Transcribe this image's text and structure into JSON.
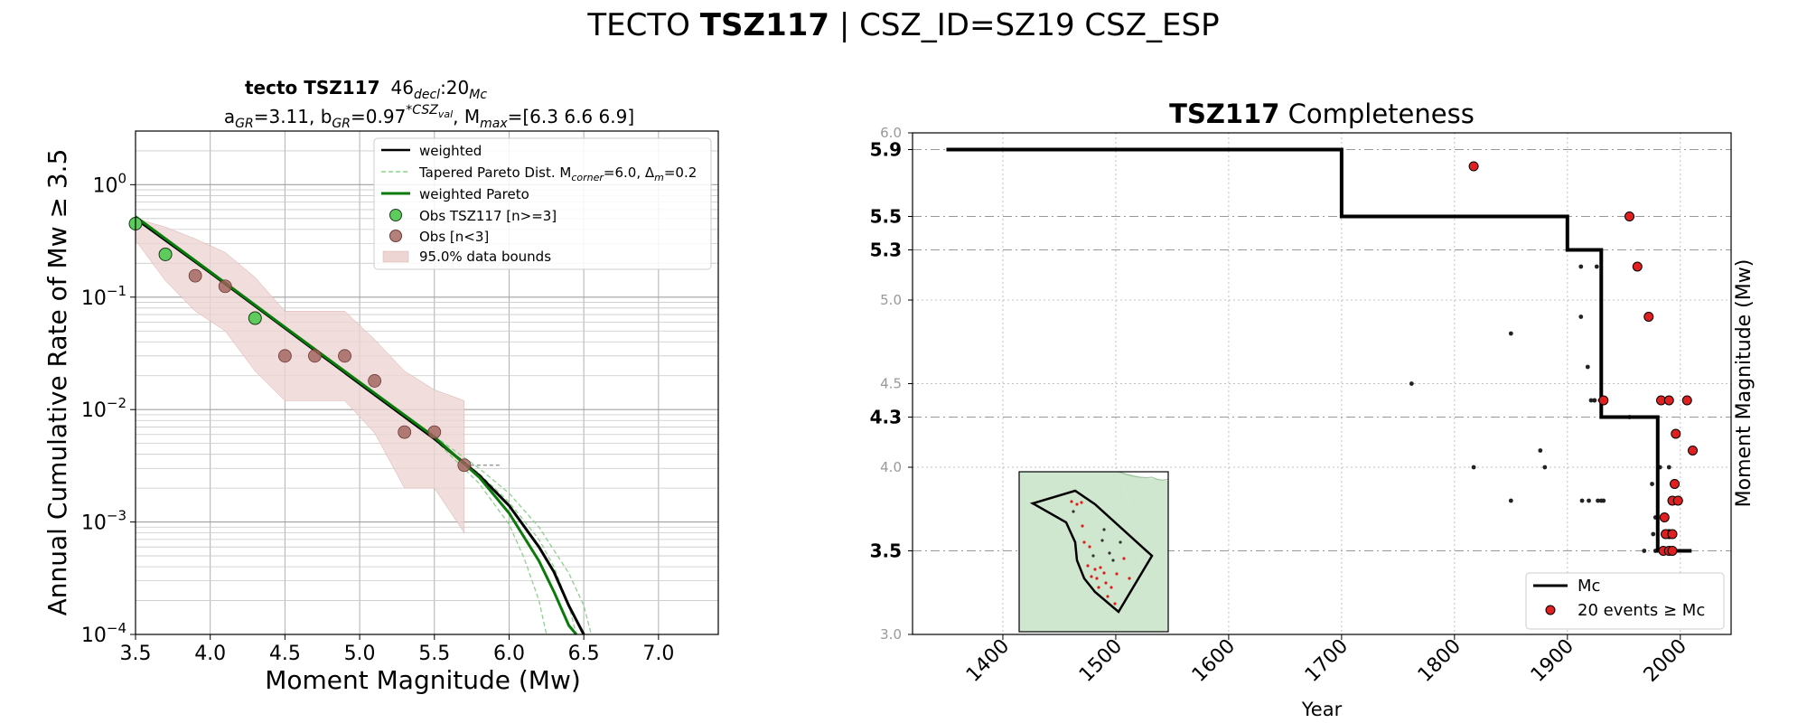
{
  "figure": {
    "suptitle_pre": "TECTO",
    "suptitle_bold": "TSZ117",
    "suptitle_post": "| CSZ_ID=SZ19 CSZ_ESP"
  },
  "chart_data": [
    {
      "type": "line",
      "title_bold": "tecto TSZ117",
      "title_main": "46",
      "title_sub1": "decl",
      "title_mid": ":20",
      "title_sub2": "Mc",
      "subtitle": "a_GR=3.11,  b_GR=0.97^*CSZ_val, M_max=[6.3 6.6 6.9]",
      "xlabel": "Moment Magnitude (Mw)",
      "ylabel": "Annual Cumulative Rate of Mw  ≥  3.5",
      "xlim": [
        3.5,
        7.4
      ],
      "ylim": [
        0.0001,
        3
      ],
      "yscale": "log",
      "xticks": [
        "3.5",
        "4.0",
        "4.5",
        "5.0",
        "5.5",
        "6.0",
        "6.5",
        "7.0"
      ],
      "yticks": [
        {
          "base": "10",
          "exp": "0",
          "value": 1
        },
        {
          "base": "10",
          "exp": "−1",
          "value": 0.1
        },
        {
          "base": "10",
          "exp": "−2",
          "value": 0.01
        },
        {
          "base": "10",
          "exp": "−3",
          "value": 0.001
        },
        {
          "base": "10",
          "exp": "−4",
          "value": 0.0001
        }
      ],
      "grid": true,
      "legend_position": "top-right",
      "legend": [
        {
          "label": "weighted",
          "kind": "line",
          "color": "#000000"
        },
        {
          "label": "Tapered Pareto Dist. M_corner=6.0, Δ_m=0.2",
          "kind": "dashed",
          "color": "#8fd18f"
        },
        {
          "label": "weighted Pareto",
          "kind": "line",
          "color": "#0a7a0a"
        },
        {
          "label": "Obs TSZ117 [n>=3]",
          "kind": "marker",
          "color": "#5dcc5d"
        },
        {
          "label": "Obs [n<3]",
          "kind": "marker",
          "color": "#a0605a"
        },
        {
          "label": "95.0% data bounds",
          "kind": "patch",
          "color": "#ecd5d3"
        }
      ],
      "series": [
        {
          "name": "Obs TSZ117 [n>=3]",
          "x": [
            3.5,
            3.7,
            4.3
          ],
          "y": [
            0.45,
            0.24,
            0.065
          ]
        },
        {
          "name": "Obs [n<3]",
          "x": [
            3.9,
            4.1,
            4.5,
            4.7,
            4.9,
            5.1,
            5.3,
            5.5,
            5.7
          ],
          "y": [
            0.155,
            0.125,
            0.03,
            0.03,
            0.03,
            0.018,
            0.0063,
            0.0063,
            0.0032
          ]
        },
        {
          "name": "weighted Pareto",
          "x": [
            3.5,
            4.0,
            4.5,
            5.0,
            5.5,
            5.8,
            6.0,
            6.2,
            6.3,
            6.4,
            6.45
          ],
          "y": [
            0.52,
            0.168,
            0.054,
            0.0175,
            0.0057,
            0.0025,
            0.0012,
            0.00045,
            0.00024,
            0.00012,
            0.0001
          ]
        },
        {
          "name": "weighted",
          "x": [
            3.5,
            4.0,
            4.5,
            5.0,
            5.5,
            5.8,
            6.0,
            6.2,
            6.3,
            6.4,
            6.5
          ],
          "y": [
            0.5,
            0.165,
            0.053,
            0.017,
            0.0055,
            0.0026,
            0.0014,
            0.0006,
            0.00036,
            0.00018,
            0.0001
          ]
        },
        {
          "name": "Tapered Pareto Dist. M_corner=6.0, Δ_m=0.2",
          "curves": [
            {
              "x": [
                5.5,
                5.8,
                6.0,
                6.1,
                6.2,
                6.25
              ],
              "y": [
                0.0054,
                0.0022,
                0.00095,
                0.00048,
                0.0002,
                0.0001
              ]
            },
            {
              "x": [
                5.5,
                5.8,
                6.0,
                6.2,
                6.3,
                6.4,
                6.45
              ],
              "y": [
                0.0056,
                0.0027,
                0.0015,
                0.0007,
                0.0004,
                0.00018,
                0.0001
              ]
            },
            {
              "x": [
                5.5,
                5.8,
                6.0,
                6.2,
                6.4,
                6.5,
                6.55
              ],
              "y": [
                0.0058,
                0.003,
                0.0018,
                0.0009,
                0.00035,
                0.00018,
                0.0001
              ]
            }
          ]
        },
        {
          "name": "95.0% data bounds",
          "x": [
            3.5,
            3.7,
            3.9,
            4.1,
            4.3,
            4.5,
            4.7,
            4.9,
            5.1,
            5.3,
            5.5,
            5.7
          ],
          "upper": [
            0.5,
            0.42,
            0.33,
            0.25,
            0.15,
            0.075,
            0.075,
            0.075,
            0.042,
            0.022,
            0.015,
            0.012
          ],
          "lower": [
            0.32,
            0.14,
            0.075,
            0.05,
            0.022,
            0.012,
            0.012,
            0.012,
            0.0062,
            0.002,
            0.002,
            0.0008
          ]
        }
      ],
      "reference_line": {
        "x": [
          5.7,
          5.95
        ],
        "y": [
          0.0032,
          0.0032
        ]
      }
    },
    {
      "type": "scatter",
      "title_bold": "TSZ117",
      "title_rest": "Completeness",
      "xlabel": "Year",
      "ylabel": "Moment Magnitude (Mw)",
      "xlim": [
        1320,
        2045
      ],
      "ylim": [
        3.0,
        6.0
      ],
      "xticks": [
        "1400",
        "1500",
        "1600",
        "1700",
        "1800",
        "1900",
        "2000"
      ],
      "yticks_minor": [
        "3.0",
        "4.0",
        "4.5",
        "5.0",
        "6.0"
      ],
      "yticks_major": [
        "3.5",
        "4.3",
        "5.3",
        "5.5",
        "5.9"
      ],
      "grid": true,
      "legend_position": "bottom-right",
      "legend": [
        {
          "label": "Mc",
          "kind": "line",
          "color": "#000000"
        },
        {
          "label": "20 events ≥ Mc",
          "kind": "marker",
          "color": "#e02020"
        }
      ],
      "mc_step": {
        "x": [
          1350,
          1700,
          1700,
          1900,
          1900,
          1930,
          1930,
          1980,
          1980,
          2010
        ],
        "y": [
          5.9,
          5.9,
          5.5,
          5.5,
          5.3,
          5.3,
          4.3,
          4.3,
          3.5,
          3.5
        ]
      },
      "events_above_mc": {
        "x": [
          1817,
          1955,
          1962,
          1972,
          1983,
          1990,
          1996,
          2006,
          2011,
          1932,
          1995,
          1993,
          1998,
          1986,
          1990,
          1987,
          1993,
          1985,
          1990,
          1993
        ],
        "y": [
          5.8,
          5.5,
          5.2,
          4.9,
          4.4,
          4.4,
          4.2,
          4.4,
          4.1,
          4.4,
          3.9,
          3.8,
          3.8,
          3.7,
          3.6,
          3.6,
          3.6,
          3.5,
          3.5,
          3.5
        ]
      },
      "events_below_mc": {
        "x": [
          1762,
          1817,
          1850,
          1850,
          1876,
          1880,
          1912,
          1912,
          1918,
          1921,
          1924,
          1926,
          1927,
          1930,
          1932,
          1913,
          1919,
          1924,
          1929,
          1929,
          1955,
          1975,
          1978,
          1982,
          1990,
          1978,
          1976,
          1968,
          1985
        ],
        "y": [
          4.5,
          4.0,
          4.8,
          3.8,
          4.1,
          4.0,
          5.2,
          4.9,
          4.6,
          4.4,
          4.4,
          5.2,
          3.8,
          3.8,
          3.8,
          3.8,
          3.8,
          4.4,
          4.4,
          4.4,
          4.3,
          3.9,
          3.7,
          4.0,
          4.0,
          3.5,
          3.6,
          3.5,
          3.5
        ]
      },
      "inset_map": {
        "fill": "#cfe6cf",
        "outline": "#000000"
      }
    }
  ]
}
